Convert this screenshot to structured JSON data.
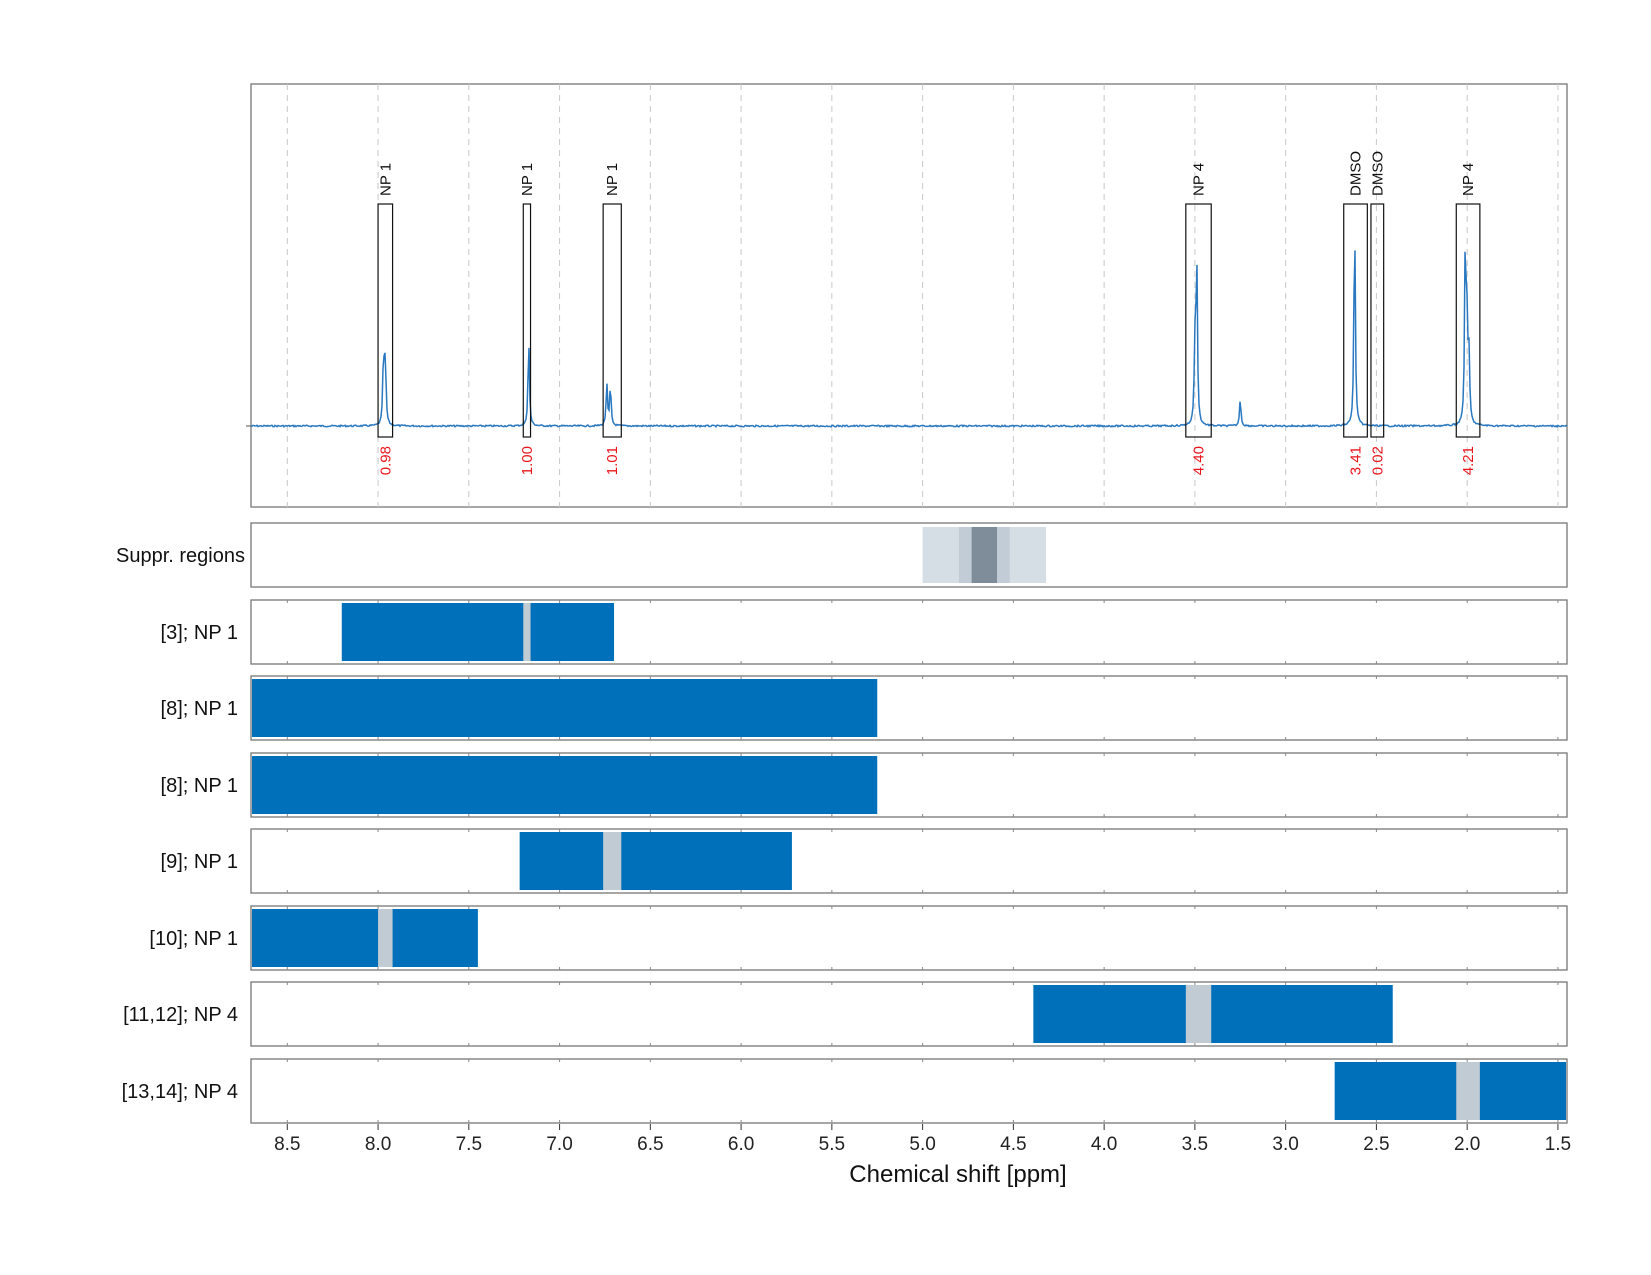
{
  "chart_data": {
    "type": "line",
    "xlabel": "Chemical shift [ppm]",
    "xlim": [
      8.7,
      1.45
    ],
    "x_reversed": true,
    "x_ticks": [
      8.5,
      8.0,
      7.5,
      7.0,
      6.5,
      6.0,
      5.5,
      5.0,
      4.5,
      4.0,
      3.5,
      3.0,
      2.5,
      2.0,
      1.5
    ],
    "x_tick_labels": [
      "8.5",
      "8.0",
      "7.5",
      "7.0",
      "6.5",
      "6.0",
      "5.5",
      "5.0",
      "4.5",
      "4.0",
      "3.5",
      "3.0",
      "2.5",
      "2.0",
      "1.5"
    ],
    "grid": "vertical dashed",
    "spectrum": {
      "color": "#2a78c0",
      "peaks": [
        {
          "ppm": 7.97,
          "height": 0.33
        },
        {
          "ppm": 7.96,
          "height": 0.31
        },
        {
          "ppm": 7.17,
          "height": 0.41
        },
        {
          "ppm": 6.74,
          "height": 0.2
        },
        {
          "ppm": 6.72,
          "height": 0.19
        },
        {
          "ppm": 3.49,
          "height": 0.81
        },
        {
          "ppm": 3.5,
          "height": 0.35
        },
        {
          "ppm": 3.25,
          "height": 0.13
        },
        {
          "ppm": 2.62,
          "height": 1.0
        },
        {
          "ppm": 2.01,
          "height": 0.9
        },
        {
          "ppm": 2.0,
          "height": 0.42
        },
        {
          "ppm": 1.99,
          "height": 0.3
        }
      ]
    },
    "annotations": [
      {
        "label": "NP 1",
        "from": 8.0,
        "to": 7.92,
        "integral": "0.98"
      },
      {
        "label": "NP 1",
        "from": 7.2,
        "to": 7.16,
        "integral": "1.00"
      },
      {
        "label": "NP 1",
        "from": 6.76,
        "to": 6.66,
        "integral": "1.01"
      },
      {
        "label": "NP 4",
        "from": 3.55,
        "to": 3.41,
        "integral": "4.40"
      },
      {
        "label": "DMSO",
        "from": 2.68,
        "to": 2.55,
        "integral": "3.41"
      },
      {
        "label": "DMSO",
        "from": 2.53,
        "to": 2.46,
        "integral": "0.02"
      },
      {
        "label": "NP 4",
        "from": 2.06,
        "to": 1.93,
        "integral": "4.21"
      }
    ],
    "suppressed_regions": {
      "label": "Suppr. regions",
      "bands": [
        {
          "from": 5.0,
          "to": 4.32,
          "shade": "#d6dee5"
        },
        {
          "from": 4.8,
          "to": 4.52,
          "shade": "#c2ccd6"
        },
        {
          "from": 4.73,
          "to": 4.59,
          "shade": "#7f8c99"
        }
      ]
    },
    "tracks": [
      {
        "label": "[3]; NP 1",
        "from": 8.2,
        "to": 6.7,
        "gaps": [
          [
            7.2,
            7.16
          ]
        ]
      },
      {
        "label": "[8]; NP 1",
        "from": 8.7,
        "to": 5.25,
        "gaps": []
      },
      {
        "label": "[8]; NP 1",
        "from": 8.7,
        "to": 5.25,
        "gaps": []
      },
      {
        "label": "[9]; NP 1",
        "from": 7.22,
        "to": 5.72,
        "gaps": [
          [
            6.76,
            6.66
          ]
        ]
      },
      {
        "label": "[10]; NP 1",
        "from": 8.7,
        "to": 7.45,
        "gaps": [
          [
            8.0,
            7.92
          ]
        ]
      },
      {
        "label": "[11,12]; NP 4",
        "from": 4.39,
        "to": 2.41,
        "gaps": [
          [
            3.55,
            3.41
          ]
        ]
      },
      {
        "label": "[13,14]; NP 4",
        "from": 2.73,
        "to": 1.45,
        "gaps": [
          [
            2.06,
            1.93
          ]
        ]
      }
    ],
    "track_color": "#0070bb",
    "gap_color": "#c0cbd4"
  }
}
